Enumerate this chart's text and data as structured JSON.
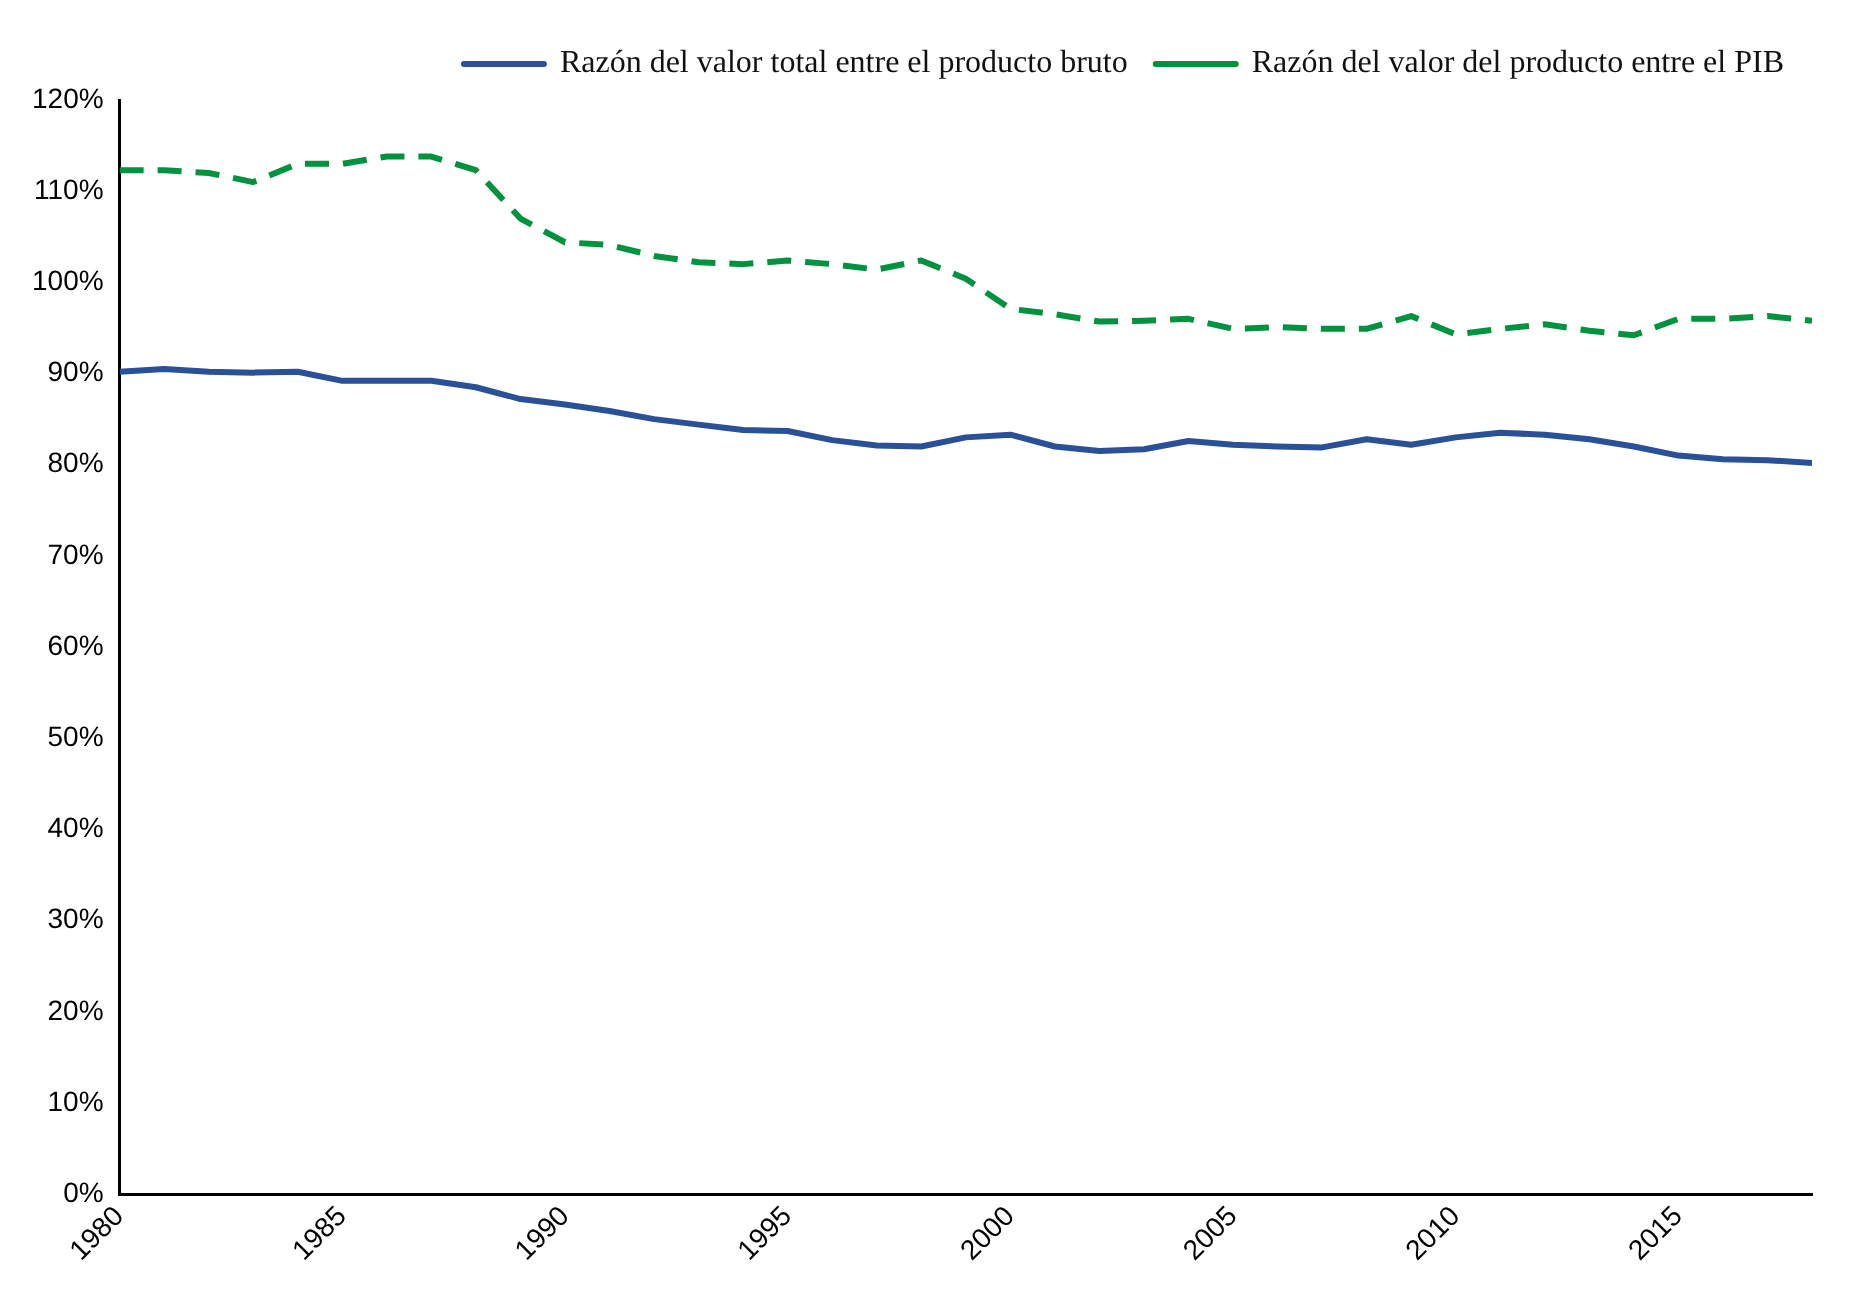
{
  "chart_data": {
    "type": "line",
    "x": [
      1980,
      1981,
      1982,
      1983,
      1984,
      1985,
      1986,
      1987,
      1988,
      1989,
      1990,
      1991,
      1992,
      1993,
      1994,
      1995,
      1996,
      1997,
      1998,
      1999,
      2000,
      2001,
      2002,
      2003,
      2004,
      2005,
      2006,
      2007,
      2008,
      2009,
      2010,
      2011,
      2012,
      2013,
      2014,
      2015,
      2016,
      2017,
      2018
    ],
    "series": [
      {
        "name": "Razón del valor total entre el producto bruto",
        "color": "#2a5098",
        "line_style": "solid",
        "values": [
          90.2,
          90.5,
          90.2,
          90.1,
          90.2,
          89.2,
          89.2,
          89.2,
          88.5,
          87.2,
          86.6,
          85.9,
          85,
          84.4,
          83.8,
          83.7,
          82.7,
          82.1,
          82,
          83,
          83.3,
          82,
          81.5,
          81.7,
          82.6,
          82.2,
          82,
          81.9,
          82.8,
          82.2,
          83,
          83.5,
          83.3,
          82.8,
          82,
          81,
          80.6,
          80.5,
          80.2
        ]
      },
      {
        "name": "Razón del valor del producto entre el PIB",
        "color": "#00923f",
        "line_style": "dashed",
        "values": [
          112.3,
          112.3,
          112,
          111,
          113,
          113,
          113.8,
          113.8,
          112.3,
          107,
          104.4,
          104.1,
          102.9,
          102.2,
          102,
          102.4,
          102,
          101.4,
          102.4,
          100.4,
          97.1,
          96.5,
          95.7,
          95.8,
          96,
          94.9,
          95.1,
          94.9,
          94.9,
          96.3,
          94.3,
          94.9,
          95.4,
          94.7,
          94.2,
          96,
          96,
          96.3,
          95.8
        ]
      }
    ],
    "xlim": [
      1980,
      2018
    ],
    "xticks": [
      1980,
      1985,
      1990,
      1995,
      2000,
      2005,
      2010,
      2015
    ],
    "ylim": [
      0,
      120
    ],
    "yticks": [
      {
        "value": 0,
        "label": "0%"
      },
      {
        "value": 10,
        "label": "10%"
      },
      {
        "value": 20,
        "label": "20%"
      },
      {
        "value": 30,
        "label": "30%"
      },
      {
        "value": 40,
        "label": "40%"
      },
      {
        "value": 50,
        "label": "50%"
      },
      {
        "value": 60,
        "label": "60%"
      },
      {
        "value": 70,
        "label": "70%"
      },
      {
        "value": 80,
        "label": "80%"
      },
      {
        "value": 90,
        "label": "90%"
      },
      {
        "value": 100,
        "label": "100%"
      },
      {
        "value": 110,
        "label": "110%"
      },
      {
        "value": 120,
        "label": "120%"
      }
    ],
    "grid": false,
    "legend": "top right",
    "marker": "none"
  }
}
